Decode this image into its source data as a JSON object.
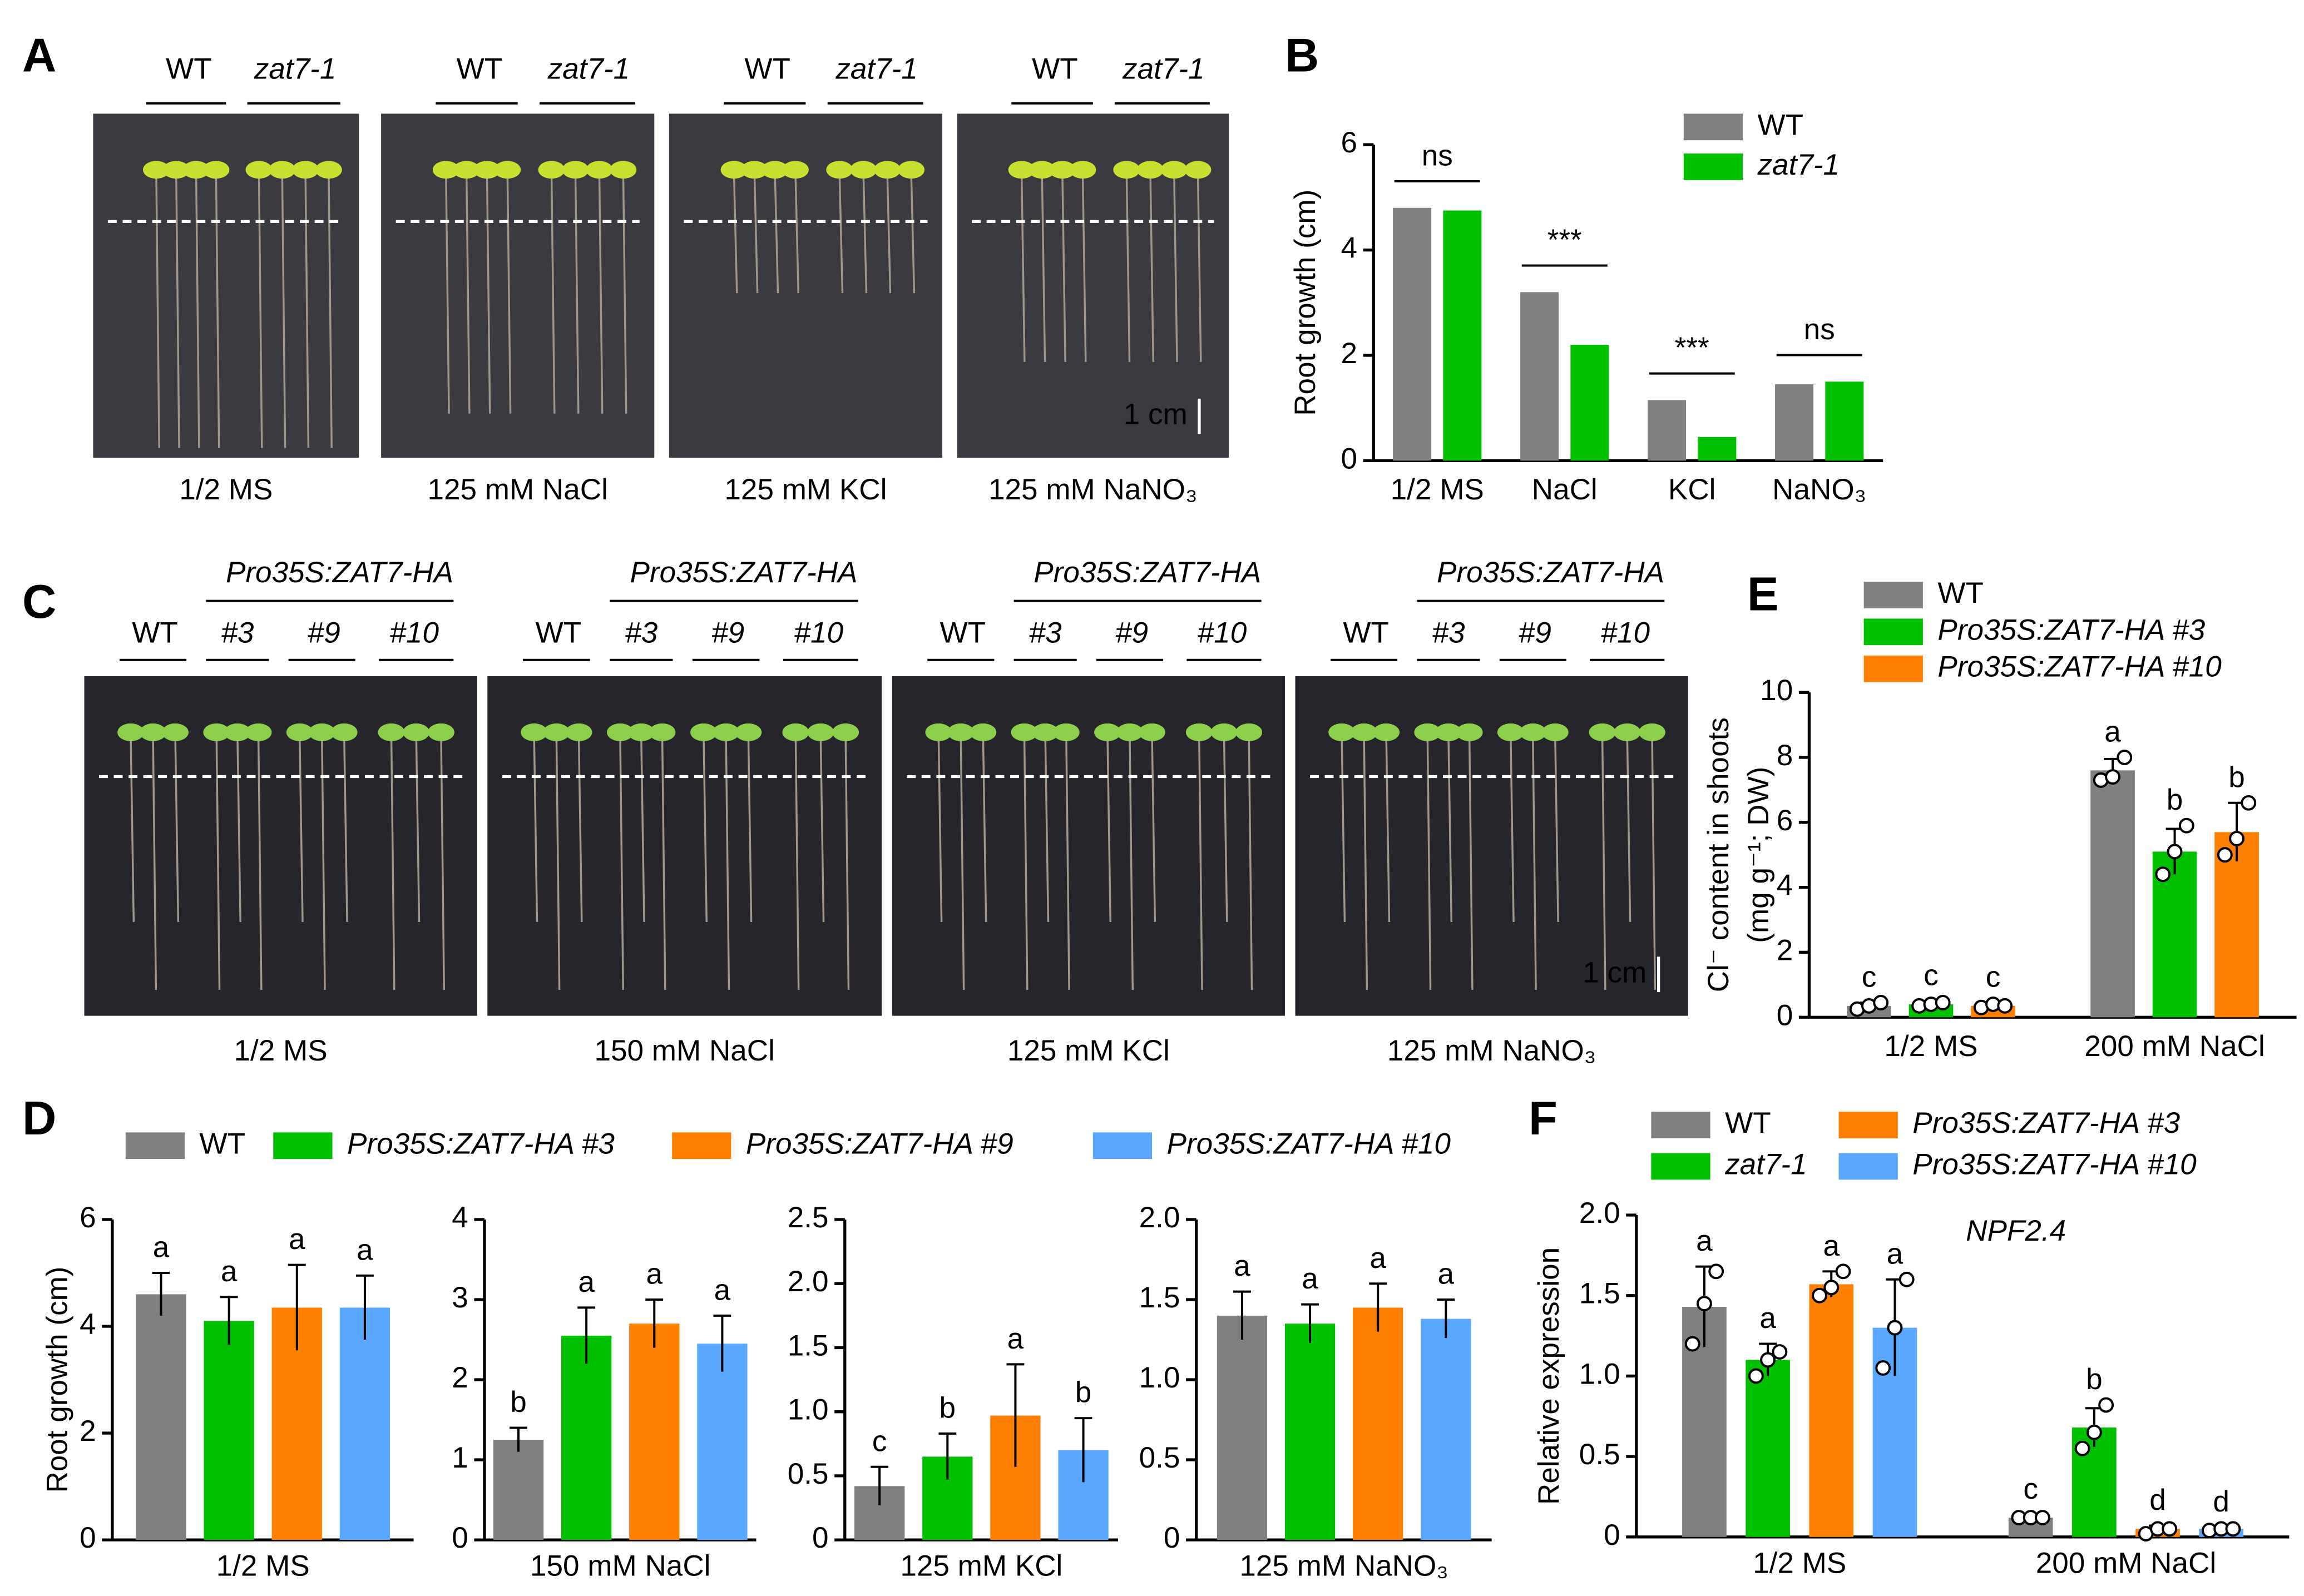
{
  "photo_panels": [
    {
      "letter": "A",
      "scale": "1 cm",
      "photos": [
        {
          "labels": [
            "WT",
            "zat7-1"
          ],
          "condition": "1/2 MS"
        },
        {
          "labels": [
            "WT",
            "zat7-1"
          ],
          "condition": "125 mM NaCl"
        },
        {
          "labels": [
            "WT",
            "zat7-1"
          ],
          "condition": "125 mM KCl"
        },
        {
          "labels": [
            "WT",
            "zat7-1"
          ],
          "condition": "125 mM NaNO₃"
        }
      ]
    },
    {
      "letter": "C",
      "scale": "1 cm",
      "photos": [
        {
          "construct": "Pro35S:ZAT7-HA",
          "labels": [
            "WT",
            "#3",
            "#9",
            "#10"
          ],
          "condition": "1/2 MS"
        },
        {
          "construct": "Pro35S:ZAT7-HA",
          "labels": [
            "WT",
            "#3",
            "#9",
            "#10"
          ],
          "condition": "150 mM NaCl"
        },
        {
          "construct": "Pro35S:ZAT7-HA",
          "labels": [
            "WT",
            "#3",
            "#9",
            "#10"
          ],
          "condition": "125 mM KCl"
        },
        {
          "construct": "Pro35S:ZAT7-HA",
          "labels": [
            "WT",
            "#3",
            "#9",
            "#10"
          ],
          "condition": "125 mM NaNO₃"
        }
      ]
    }
  ],
  "chart_data": [
    {
      "type": "bar",
      "panel": "B",
      "ylabel": "Root growth (cm)",
      "categories": [
        "1/2 MS",
        "NaCl",
        "KCl",
        "NaNO₃"
      ],
      "annotations": [
        "ns",
        "***",
        "***",
        "ns"
      ],
      "ylim": [
        0,
        6
      ],
      "yticks": [
        0,
        2,
        4,
        6
      ],
      "series": [
        {
          "name": "WT",
          "color": "#808080",
          "values": [
            4.8,
            3.2,
            1.15,
            1.45
          ]
        },
        {
          "name": "zat7-1",
          "italic": true,
          "color": "#00c000",
          "values": [
            4.75,
            2.2,
            0.45,
            1.5
          ]
        }
      ]
    },
    {
      "type": "bar",
      "panel": "D",
      "ylabel": "Root growth (cm)",
      "categories": [
        "1/2 MS"
      ],
      "ylim": [
        0,
        6
      ],
      "yticks": [
        0,
        2,
        4,
        6
      ],
      "series": [
        {
          "name": "WT",
          "color": "#808080",
          "values": [
            4.6
          ],
          "errors": [
            0.4
          ],
          "letters": [
            "a"
          ]
        },
        {
          "name": "Pro35S:ZAT7-HA #3",
          "italic": true,
          "color": "#00c000",
          "values": [
            4.1
          ],
          "errors": [
            0.45
          ],
          "letters": [
            "a"
          ]
        },
        {
          "name": "Pro35S:ZAT7-HA #9",
          "italic": true,
          "color": "#ff8000",
          "values": [
            4.35
          ],
          "errors": [
            0.8
          ],
          "letters": [
            "a"
          ]
        },
        {
          "name": "Pro35S:ZAT7-HA #10",
          "italic": true,
          "color": "#5aa7ff",
          "values": [
            4.35
          ],
          "errors": [
            0.6
          ],
          "letters": [
            "a"
          ]
        }
      ]
    },
    {
      "type": "bar",
      "categories": [
        "150 mM NaCl"
      ],
      "ylim": [
        0,
        4
      ],
      "yticks": [
        0,
        1,
        2,
        3,
        4
      ],
      "series": [
        {
          "color": "#808080",
          "values": [
            1.25
          ],
          "errors": [
            0.15
          ],
          "letters": [
            "b"
          ]
        },
        {
          "color": "#00c000",
          "values": [
            2.55
          ],
          "errors": [
            0.35
          ],
          "letters": [
            "a"
          ]
        },
        {
          "color": "#ff8000",
          "values": [
            2.7
          ],
          "errors": [
            0.3
          ],
          "letters": [
            "a"
          ]
        },
        {
          "color": "#5aa7ff",
          "values": [
            2.45
          ],
          "errors": [
            0.35
          ],
          "letters": [
            "a"
          ]
        }
      ]
    },
    {
      "type": "bar",
      "categories": [
        "125 mM KCl"
      ],
      "ylim": [
        0,
        2.5
      ],
      "yticks": [
        0,
        0.5,
        {
          "value": 1,
          "label": "1.0"
        },
        1.5,
        {
          "value": 2,
          "label": "2.0"
        },
        2.5
      ],
      "series": [
        {
          "color": "#808080",
          "values": [
            0.42
          ],
          "errors": [
            0.15
          ],
          "letters": [
            "c"
          ]
        },
        {
          "color": "#00c000",
          "values": [
            0.65
          ],
          "errors": [
            0.18
          ],
          "letters": [
            "b"
          ]
        },
        {
          "color": "#ff8000",
          "values": [
            0.97
          ],
          "errors": [
            0.4
          ],
          "letters": [
            "a"
          ]
        },
        {
          "color": "#5aa7ff",
          "values": [
            0.7
          ],
          "errors": [
            0.25
          ],
          "letters": [
            "b"
          ]
        }
      ]
    },
    {
      "type": "bar",
      "categories": [
        "125 mM NaNO₃"
      ],
      "ylim": [
        0,
        2
      ],
      "yticks": [
        0,
        0.5,
        {
          "value": 1,
          "label": "1.0"
        },
        1.5,
        {
          "value": 2,
          "label": "2.0"
        }
      ],
      "series": [
        {
          "color": "#808080",
          "values": [
            1.4
          ],
          "errors": [
            0.15
          ],
          "letters": [
            "a"
          ]
        },
        {
          "color": "#00c000",
          "values": [
            1.35
          ],
          "errors": [
            0.12
          ],
          "letters": [
            "a"
          ]
        },
        {
          "color": "#ff8000",
          "values": [
            1.45
          ],
          "errors": [
            0.15
          ],
          "letters": [
            "a"
          ]
        },
        {
          "color": "#5aa7ff",
          "values": [
            1.38
          ],
          "errors": [
            0.12
          ],
          "letters": [
            "a"
          ]
        }
      ]
    },
    {
      "type": "bar",
      "panel": "E",
      "ylabel": [
        "Cl⁻ content in shoots",
        "(mg g⁻¹; DW)"
      ],
      "categories": [
        "1/2 MS",
        "200 mM NaCl"
      ],
      "ylim": [
        0,
        10
      ],
      "yticks": [
        0,
        2,
        4,
        6,
        8,
        10
      ],
      "series": [
        {
          "name": "WT",
          "color": "#808080",
          "values": [
            0.35,
            7.6
          ],
          "errors": [
            0.1,
            0.35
          ],
          "letters": [
            "c",
            "a"
          ],
          "points": [
            [
              0.25,
              0.35,
              0.45
            ],
            [
              7.3,
              7.4,
              8.0
            ]
          ]
        },
        {
          "name": "Pro35S:ZAT7-HA #3",
          "italic": true,
          "color": "#00c000",
          "values": [
            0.4,
            5.1
          ],
          "errors": [
            0.1,
            0.7
          ],
          "letters": [
            "c",
            "b"
          ],
          "points": [
            [
              0.35,
              0.4,
              0.45
            ],
            [
              4.4,
              5.1,
              5.9
            ]
          ]
        },
        {
          "name": "Pro35S:ZAT7-HA #10",
          "italic": true,
          "color": "#ff8000",
          "values": [
            0.35,
            5.7
          ],
          "errors": [
            0.1,
            0.9
          ],
          "letters": [
            "c",
            "b"
          ],
          "points": [
            [
              0.3,
              0.4,
              0.35
            ],
            [
              5.0,
              5.5,
              6.6
            ]
          ]
        }
      ]
    },
    {
      "type": "bar",
      "panel": "F",
      "ylabel": "Relative expression",
      "note": "NPF2.4",
      "categories": [
        "1/2 MS",
        "200 mM NaCl"
      ],
      "ylim": [
        0,
        2
      ],
      "yticks": [
        0,
        0.5,
        {
          "value": 1,
          "label": "1.0"
        },
        1.5,
        {
          "value": 2,
          "label": "2.0"
        }
      ],
      "series": [
        {
          "name": "WT",
          "color": "#808080",
          "values": [
            1.43,
            0.12
          ],
          "errors": [
            0.25,
            0.02
          ],
          "letters": [
            "a",
            "c"
          ],
          "points": [
            [
              1.2,
              1.45,
              1.65
            ],
            [
              0.12,
              0.12,
              0.12
            ]
          ]
        },
        {
          "name": "zat7-1",
          "italic": true,
          "color": "#00c000",
          "values": [
            1.1,
            0.68
          ],
          "errors": [
            0.1,
            0.12
          ],
          "letters": [
            "a",
            "b"
          ],
          "points": [
            [
              1.0,
              1.1,
              1.15
            ],
            [
              0.55,
              0.65,
              0.82
            ]
          ]
        },
        {
          "name": "Pro35S:ZAT7-HA #3",
          "italic": true,
          "color": "#ff8000",
          "values": [
            1.57,
            0.05
          ],
          "errors": [
            0.08,
            0.02
          ],
          "letters": [
            "a",
            "d"
          ],
          "points": [
            [
              1.5,
              1.55,
              1.65
            ],
            [
              0.02,
              0.05,
              0.05
            ]
          ]
        },
        {
          "name": "Pro35S:ZAT7-HA #10",
          "italic": true,
          "color": "#5aa7ff",
          "values": [
            1.3,
            0.05
          ],
          "errors": [
            0.3,
            0.01
          ],
          "letters": [
            "a",
            "d"
          ],
          "points": [
            [
              1.05,
              1.3,
              1.6
            ],
            [
              0.04,
              0.05,
              0.05
            ]
          ]
        }
      ]
    }
  ]
}
